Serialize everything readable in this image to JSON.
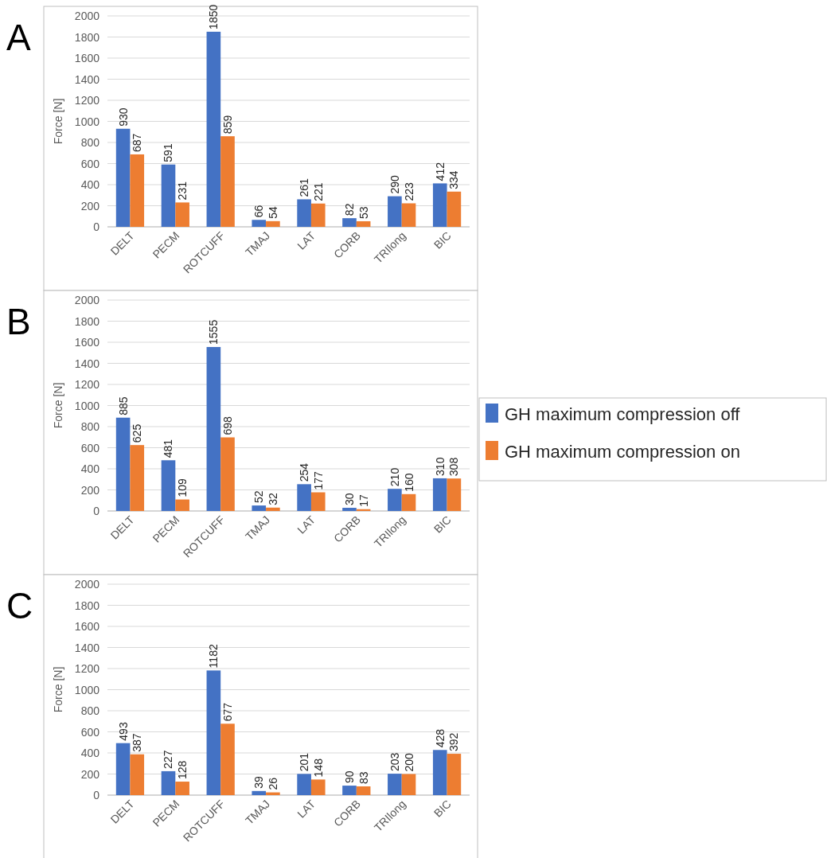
{
  "chart_data": [
    {
      "type": "bar",
      "title": "A",
      "ylabel": "Force [N]",
      "categories": [
        "DELT",
        "PECM",
        "ROTCUFF",
        "TMAJ",
        "LAT",
        "CORB",
        "TRIlong",
        "BIC"
      ],
      "series": [
        {
          "color": "#4472c4",
          "values": [
            930,
            591,
            1850,
            66,
            261,
            82,
            290,
            412
          ]
        },
        {
          "color": "#ed7d31",
          "values": [
            687,
            231,
            859,
            54,
            221,
            53,
            223,
            334
          ]
        }
      ],
      "ylim": [
        0,
        2000
      ],
      "yticks": [
        0,
        200,
        400,
        600,
        800,
        1000,
        1200,
        1400,
        1600,
        1800,
        2000
      ],
      "grid": "y",
      "data_labels": true,
      "legend": false
    },
    {
      "type": "bar",
      "title": "B",
      "ylabel": "Force [N]",
      "categories": [
        "DELT",
        "PECM",
        "ROTCUFF",
        "TMAJ",
        "LAT",
        "CORB",
        "TRIlong",
        "BIC"
      ],
      "series": [
        {
          "name": "GH maximum compression off",
          "color": "#4472c4",
          "values": [
            885,
            481,
            1555,
            52,
            254,
            30,
            210,
            310
          ]
        },
        {
          "name": "GH maximum compression on",
          "color": "#ed7d31",
          "values": [
            625,
            109,
            698,
            32,
            177,
            17,
            160,
            308
          ]
        }
      ],
      "ylim": [
        0,
        2000
      ],
      "yticks": [
        0,
        200,
        400,
        600,
        800,
        1000,
        1200,
        1400,
        1600,
        1800,
        2000
      ],
      "grid": "y",
      "data_labels": true,
      "legend": "right"
    },
    {
      "type": "bar",
      "title": "C",
      "ylabel": "Force [N]",
      "categories": [
        "DELT",
        "PECM",
        "ROTCUFF",
        "TMAJ",
        "LAT",
        "CORB",
        "TRIlong",
        "BIC"
      ],
      "series": [
        {
          "color": "#4472c4",
          "values": [
            493,
            227,
            1182,
            39,
            201,
            90,
            203,
            428
          ]
        },
        {
          "color": "#ed7d31",
          "values": [
            387,
            128,
            677,
            26,
            148,
            83,
            200,
            392
          ]
        }
      ],
      "ylim": [
        0,
        2000
      ],
      "yticks": [
        0,
        200,
        400,
        600,
        800,
        1000,
        1200,
        1400,
        1600,
        1800,
        2000
      ],
      "grid": "y",
      "data_labels": true,
      "legend": false
    }
  ]
}
